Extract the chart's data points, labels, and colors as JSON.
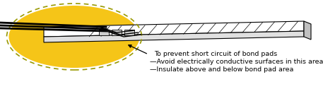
{
  "background_color": "#ffffff",
  "figure_width": 4.57,
  "figure_height": 1.26,
  "dpi": 100,
  "ellipse_color": "#F5C518",
  "ellipse_edge_color": "#999900",
  "text_lines": [
    "To prevent short circuit of bond pads",
    "—Avoid electrically conductive surfaces in this area",
    "—Insulate above and below bond pad area"
  ],
  "text_fontsize": 6.8
}
